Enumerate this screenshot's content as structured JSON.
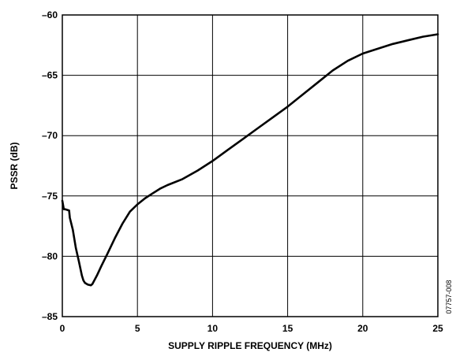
{
  "chart_data": {
    "type": "line",
    "title": "",
    "xlabel": "SUPPLY RIPPLE FREQUENCY (MHz)",
    "ylabel": "PSSR (dB)",
    "xlim": [
      0,
      25
    ],
    "ylim": [
      -85,
      -60
    ],
    "x_ticks": [
      0,
      5,
      10,
      15,
      20,
      25
    ],
    "y_ticks": [
      -60,
      -65,
      -70,
      -75,
      -80,
      -85
    ],
    "x_tick_labels": [
      "0",
      "5",
      "10",
      "15",
      "20",
      "25"
    ],
    "y_tick_labels": [
      "–60",
      "–65",
      "–70",
      "–75",
      "–80",
      "–85"
    ],
    "grid": true,
    "figure_id": "07757-008",
    "series": [
      {
        "color": "#000000",
        "x": [
          0,
          0.1,
          0.2,
          0.45,
          0.5,
          0.7,
          0.9,
          1.1,
          1.3,
          1.4,
          1.5,
          1.7,
          1.9,
          2.0,
          2.3,
          2.6,
          3.0,
          3.5,
          4.0,
          4.5,
          5.0,
          5.5,
          6.0,
          6.5,
          7.0,
          8.0,
          9.0,
          10.0,
          11.0,
          12.0,
          13.0,
          14.0,
          15.0,
          16.0,
          17.0,
          18.0,
          19.0,
          20.0,
          21.0,
          22.0,
          23.0,
          24.0,
          25.0
        ],
        "y": [
          -75.4,
          -76.1,
          -76.1,
          -76.2,
          -76.8,
          -77.8,
          -79.3,
          -80.4,
          -81.6,
          -82.0,
          -82.2,
          -82.35,
          -82.4,
          -82.3,
          -81.6,
          -80.8,
          -79.8,
          -78.5,
          -77.3,
          -76.3,
          -75.7,
          -75.2,
          -74.8,
          -74.4,
          -74.1,
          -73.6,
          -72.9,
          -72.1,
          -71.2,
          -70.3,
          -69.4,
          -68.5,
          -67.6,
          -66.6,
          -65.6,
          -64.6,
          -63.8,
          -63.2,
          -62.8,
          -62.4,
          -62.1,
          -61.8,
          -61.6
        ]
      }
    ]
  }
}
